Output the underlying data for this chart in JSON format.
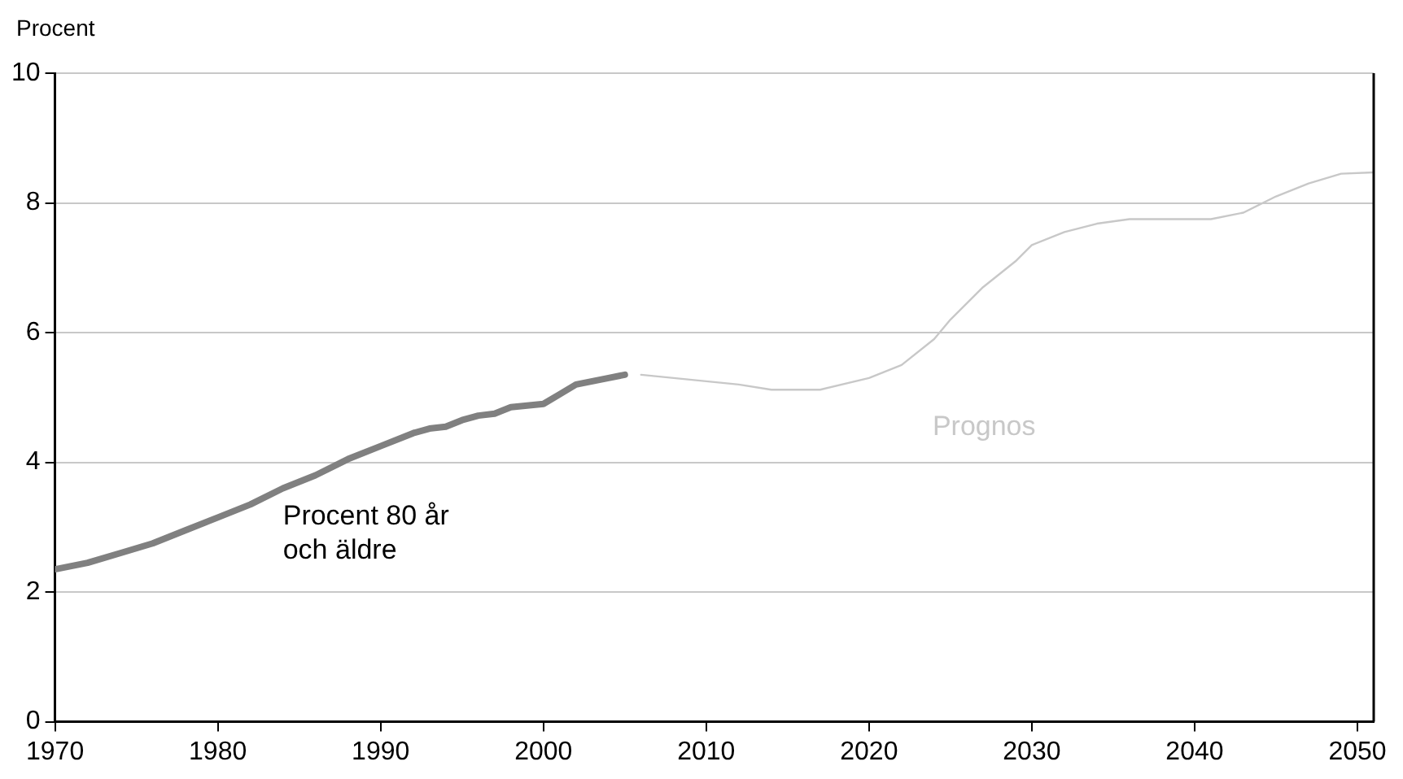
{
  "chart_data": {
    "type": "line",
    "ylabel": "Procent",
    "xlim": [
      1970,
      2051
    ],
    "xticks": [
      1970,
      1980,
      1990,
      2000,
      2010,
      2020,
      2030,
      2040,
      2050
    ],
    "ylim": [
      0,
      10
    ],
    "yticks": [
      0,
      2,
      4,
      6,
      8,
      10
    ],
    "grid": "y",
    "legend": false,
    "marker": "none",
    "line_style": "solid",
    "series": [
      {
        "name": "Procent 80 år och äldre",
        "color": "#808080",
        "x": [
          1970,
          1972,
          1974,
          1976,
          1978,
          1980,
          1982,
          1984,
          1986,
          1988,
          1990,
          1992,
          1993,
          1994,
          1995,
          1996,
          1997,
          1998,
          2000,
          2001,
          2002,
          2004,
          2005
        ],
        "values": [
          2.35,
          2.45,
          2.6,
          2.75,
          2.95,
          3.15,
          3.35,
          3.6,
          3.8,
          4.05,
          4.25,
          4.45,
          4.52,
          4.55,
          4.65,
          4.72,
          4.75,
          4.85,
          4.9,
          5.05,
          5.2,
          5.3,
          5.35
        ]
      },
      {
        "name": "Prognos",
        "color": "#c8c8c8",
        "x": [
          2006,
          2008,
          2010,
          2012,
          2014,
          2017,
          2020,
          2022,
          2024,
          2025,
          2027,
          2029,
          2030,
          2032,
          2034,
          2036,
          2038,
          2041,
          2043,
          2045,
          2047,
          2049,
          2051
        ],
        "values": [
          5.35,
          5.3,
          5.25,
          5.2,
          5.12,
          5.12,
          5.3,
          5.5,
          5.9,
          6.2,
          6.7,
          7.1,
          7.35,
          7.55,
          7.68,
          7.75,
          7.75,
          7.75,
          7.85,
          8.1,
          8.3,
          8.45,
          8.47
        ]
      }
    ]
  }
}
